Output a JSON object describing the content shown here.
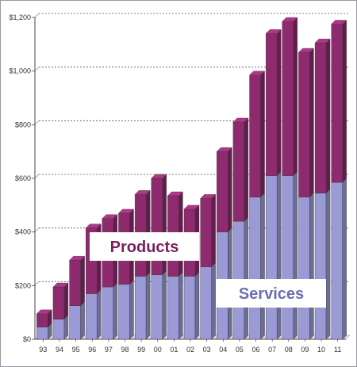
{
  "chart_data": {
    "type": "bar",
    "stacked": true,
    "categories": [
      "93",
      "94",
      "95",
      "96",
      "97",
      "98",
      "99",
      "00",
      "01",
      "02",
      "03",
      "04",
      "05",
      "06",
      "07",
      "08",
      "09",
      "10",
      "11"
    ],
    "series": [
      {
        "name": "Services",
        "color": "#9a9ad6",
        "values": [
          45,
          75,
          125,
          170,
          195,
          205,
          235,
          240,
          235,
          235,
          270,
          400,
          440,
          530,
          610,
          610,
          530,
          545,
          585
        ]
      },
      {
        "name": "Products",
        "color": "#8e2a6e",
        "values": [
          50,
          120,
          170,
          245,
          255,
          265,
          305,
          360,
          300,
          250,
          255,
          300,
          370,
          455,
          530,
          575,
          540,
          560,
          590
        ]
      }
    ],
    "ylim": [
      0,
      1200
    ],
    "yticks": [
      0,
      200,
      400,
      600,
      800,
      1000,
      1200
    ],
    "ytick_labels": [
      "$0",
      "$200",
      "$400",
      "$600",
      "$800",
      "$1,000",
      "$1,200"
    ],
    "grid": "horizontal-dotted",
    "legend": "inside",
    "title": "",
    "xlabel": "",
    "ylabel": ""
  }
}
